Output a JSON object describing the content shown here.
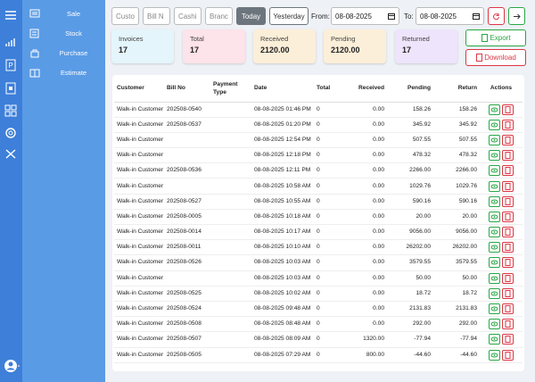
{
  "menu": [
    "Sale",
    "Stock",
    "Purchase",
    "Estimate"
  ],
  "filters": {
    "inputs": [
      "Custo",
      "Bill N",
      "Cashi",
      "Branc"
    ],
    "today": "Today",
    "yesterday": "Yesterday",
    "from_label": "From:",
    "from_date": "08-08-2025",
    "to_label": "To:",
    "to_date": "08-08-2025"
  },
  "cards": [
    {
      "label": "Invoices",
      "value": "17"
    },
    {
      "label": "Total",
      "value": "17"
    },
    {
      "label": "Received",
      "value": "2120.00"
    },
    {
      "label": "Pending",
      "value": "2120.00"
    },
    {
      "label": "Returned",
      "value": "17"
    }
  ],
  "buttons": {
    "export": "Export",
    "download": "Download"
  },
  "table": {
    "headers": [
      "Customer",
      "Bill No",
      "Payment Type",
      "Date",
      "Total",
      "Received",
      "Pending",
      "Return",
      "Actions"
    ],
    "rows": [
      [
        "Walk-in Customer",
        "202508-0540",
        "08-08-2025 01:46 PM",
        "0",
        "0.00",
        "158.26",
        "158.26"
      ],
      [
        "Walk-in Customer",
        "202508-0537",
        "08-08-2025 01:20 PM",
        "0",
        "0.00",
        "345.92",
        "345.92"
      ],
      [
        "Walk-in Customer",
        null,
        "08-08-2025 12:54 PM",
        "0",
        "0.00",
        "507.55",
        "507.55"
      ],
      [
        "Walk-in Customer",
        null,
        "08-08-2025 12:18 PM",
        "0",
        "0.00",
        "478.32",
        "478.32"
      ],
      [
        "Walk-in Customer",
        "202508-0536",
        "08-08-2025 12:11 PM",
        "0",
        "0.00",
        "2266.00",
        "2266.00"
      ],
      [
        "Walk-in Customer",
        null,
        "08-08-2025 10:58 AM",
        "0",
        "0.00",
        "1029.76",
        "1029.76"
      ],
      [
        "Walk-in Customer",
        "202508-0527",
        "08-08-2025 10:55 AM",
        "0",
        "0.00",
        "590.16",
        "590.16"
      ],
      [
        "Walk-in Customer",
        "202508-0005",
        "08-08-2025 10:18 AM",
        "0",
        "0.00",
        "20.00",
        "20.00"
      ],
      [
        "Walk-in Customer",
        "202508-0014",
        "08-08-2025 10:17 AM",
        "0",
        "0.00",
        "9056.00",
        "9056.00"
      ],
      [
        "Walk-in Customer",
        "202508-0011",
        "08-08-2025 10:10 AM",
        "0",
        "0.00",
        "26202.00",
        "26202.00"
      ],
      [
        "Walk-in Customer",
        "202508-0526",
        "08-08-2025 10:03 AM",
        "0",
        "0.00",
        "3579.55",
        "3579.55"
      ],
      [
        "Walk-in Customer",
        null,
        "08-08-2025 10:03 AM",
        "0",
        "0.00",
        "50.00",
        "50.00"
      ],
      [
        "Walk-in Customer",
        "202508-0525",
        "08-08-2025 10:02 AM",
        "0",
        "0.00",
        "18.72",
        "18.72"
      ],
      [
        "Walk-in Customer",
        "202508-0524",
        "08-08-2025 09:48 AM",
        "0",
        "0.00",
        "2131.83",
        "2131.83"
      ],
      [
        "Walk-in Customer",
        "202508-0508",
        "08-08-2025 08:48 AM",
        "0",
        "0.00",
        "292.00",
        "292.00"
      ],
      [
        "Walk-in Customer",
        "202508-0507",
        "08-08-2025 08:09 AM",
        "0",
        "1320.00",
        "-77.94",
        "-77.94"
      ],
      [
        "Walk-in Customer",
        "202508-0505",
        "08-08-2025 07:29 AM",
        "0",
        "800.00",
        "-44.60",
        "-44.60"
      ]
    ]
  }
}
